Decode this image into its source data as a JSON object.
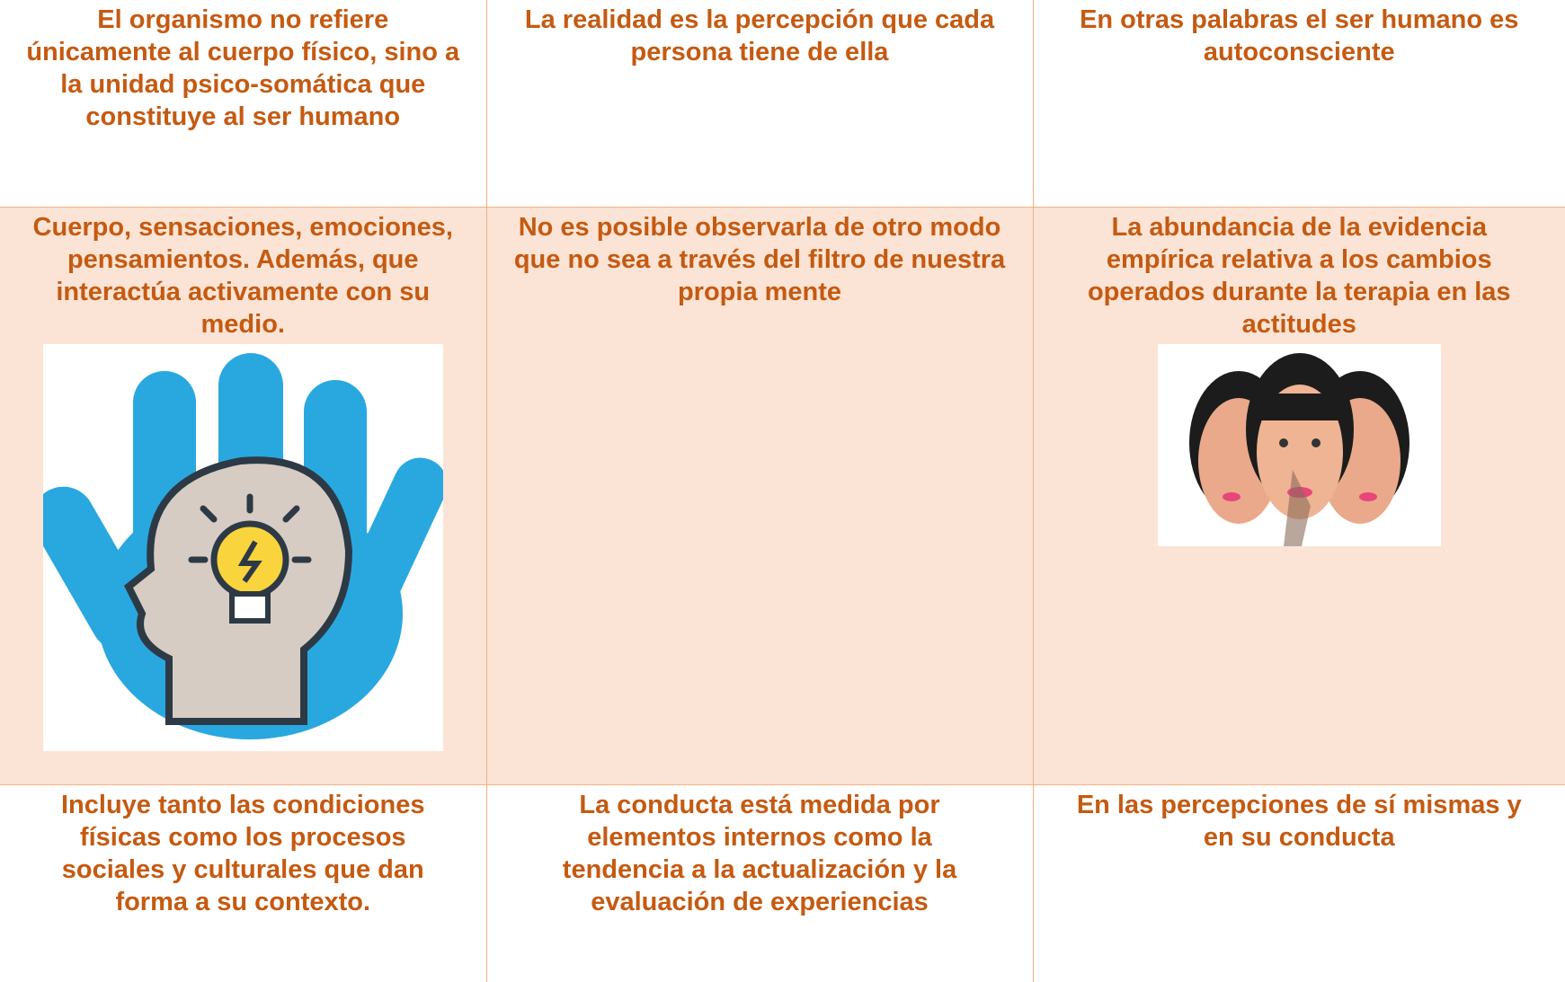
{
  "table": {
    "rows": [
      [
        "El organismo no refiere únicamente al cuerpo físico, sino a la unidad psico-somática que constituye al ser humano",
        "La realidad es la percepción que cada persona tiene de ella",
        "En otras palabras el ser humano es autoconsciente"
      ],
      [
        "Cuerpo, sensaciones, emociones, pensamientos. Además, que interactúa activamente con su medio.",
        "No es posible observarla de otro modo que no sea a través del filtro de nuestra propia mente",
        "La abundancia de la evidencia empírica relativa a los cambios operados durante la terapia en las actitudes"
      ],
      [
        "Incluye tanto las condiciones físicas como los procesos sociales y culturales que dan forma a su contexto.",
        "La conducta está medida por elementos internos como la tendencia a la actualización y la evaluación de experiencias",
        "En las percepciones de sí mismas y en su conducta"
      ]
    ]
  }
}
